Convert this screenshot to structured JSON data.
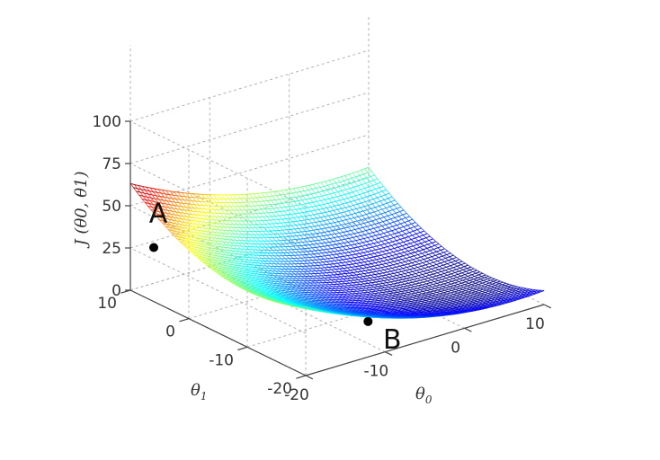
{
  "chart_data": {
    "type": "surface",
    "function": "J(θ0, θ1)",
    "x_axis": {
      "name": "θ0",
      "ticks": [
        -20,
        -10,
        0,
        10
      ],
      "range": [
        -20,
        10
      ]
    },
    "y_axis": {
      "name": "θ1",
      "ticks": [
        -20,
        -10,
        0,
        10
      ],
      "range": [
        -20,
        10
      ]
    },
    "z_axis": {
      "name": "J(θ0, θ1)",
      "ticks": [
        0,
        25,
        50,
        75,
        100
      ],
      "range": [
        0,
        100
      ]
    },
    "grid": true,
    "colormap": "jet",
    "points": [
      {
        "label": "A",
        "theta0": -20,
        "theta1": 6,
        "J": 32
      },
      {
        "label": "B",
        "theta0": -7,
        "theta1": -13,
        "J": 2
      }
    ]
  },
  "labels": {
    "z_label": "J (θ0, θ1)",
    "x_label_main": "θ",
    "x_label_sub": "0",
    "y_label_main": "θ",
    "y_label_sub": "1"
  },
  "colors": {
    "background": "#ffffff",
    "point": "#000000"
  }
}
